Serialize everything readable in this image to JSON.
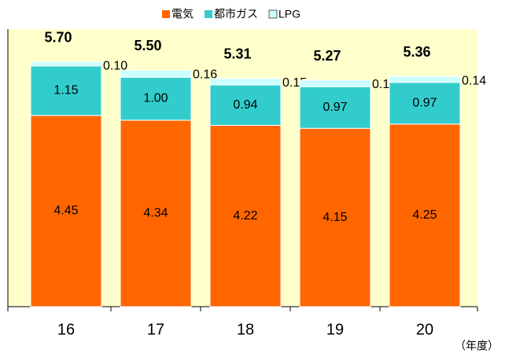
{
  "chart_data": {
    "type": "stacked_bar",
    "categories": [
      "16",
      "17",
      "18",
      "19",
      "20"
    ],
    "x_unit": "（年度）",
    "series": [
      {
        "name": "電気",
        "color": "#ff6600",
        "values": [
          4.45,
          4.34,
          4.22,
          4.15,
          4.25
        ],
        "value_labels": [
          "4.45",
          "4.34",
          "4.22",
          "4.15",
          "4.25"
        ]
      },
      {
        "name": "都市ガス",
        "color": "#33cccc",
        "values": [
          1.15,
          1.0,
          0.94,
          0.97,
          0.97
        ],
        "value_labels": [
          "1.15",
          "1.00",
          "0.94",
          "0.97",
          "0.97"
        ]
      },
      {
        "name": "LPG",
        "color": "#ccffff",
        "values": [
          0.1,
          0.16,
          0.15,
          0.15,
          0.14
        ],
        "value_labels": [
          "0.10",
          "0.16",
          "0.15",
          "0.15",
          "0.14"
        ]
      }
    ],
    "totals": [
      5.7,
      5.5,
      5.31,
      5.27,
      5.36
    ],
    "total_labels": [
      "5.70",
      "5.50",
      "5.31",
      "5.27",
      "5.36"
    ],
    "ylim": [
      0,
      6.46
    ],
    "background": "#ffffcc"
  }
}
